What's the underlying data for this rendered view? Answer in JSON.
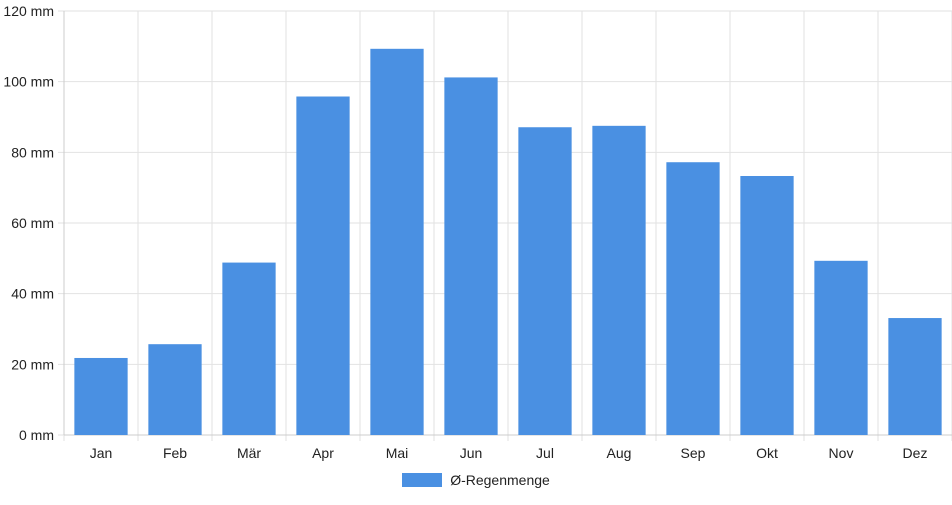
{
  "chart_data": {
    "type": "bar",
    "categories": [
      "Jan",
      "Feb",
      "Mär",
      "Apr",
      "Mai",
      "Jun",
      "Jul",
      "Aug",
      "Sep",
      "Okt",
      "Nov",
      "Dez"
    ],
    "series": [
      {
        "name": "Ø-Regenmenge",
        "values": [
          21.8,
          25.7,
          48.8,
          95.8,
          109.3,
          101.2,
          87.1,
          87.5,
          77.2,
          73.3,
          49.3,
          33.1
        ],
        "color": "#4a90e2"
      }
    ],
    "title": "",
    "xlabel": "",
    "ylabel": "",
    "ylim": [
      0,
      120
    ],
    "yticks": [
      0,
      20,
      40,
      60,
      80,
      100,
      120
    ],
    "yunit": "mm",
    "grid": true,
    "legend_position": "bottom-center"
  }
}
